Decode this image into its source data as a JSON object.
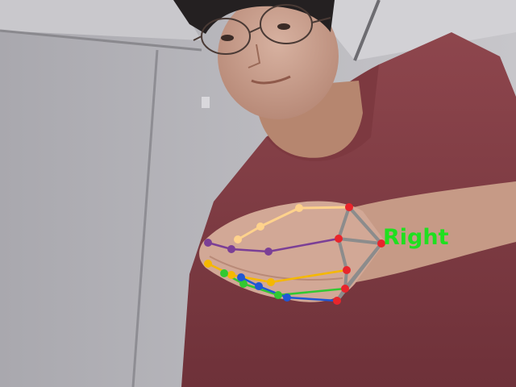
{
  "detection": {
    "handedness_label": "Right",
    "label_color": "#1fe01f"
  },
  "landmark_palette": {
    "wrist_palm": "#e8252c",
    "palm_edges": "#8c8c8c",
    "thumb": "#ffd28c",
    "index": "#7b3f96",
    "middle": "#f5b800",
    "ring": "#32c832",
    "pinky": "#1f57d6"
  }
}
